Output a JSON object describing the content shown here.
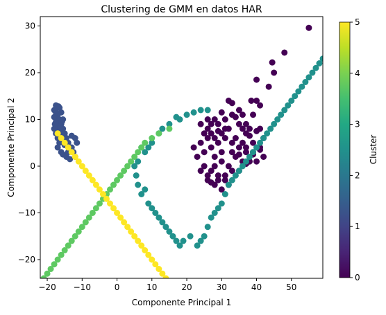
{
  "chart_data": {
    "type": "scatter",
    "title": "Clustering de GMM en datos HAR",
    "xlabel": "Componente Principal 1",
    "ylabel": "Componente Principal 2",
    "xlim": [
      -22,
      59
    ],
    "ylim": [
      -24,
      32
    ],
    "xticks": [
      -20,
      -10,
      0,
      10,
      20,
      30,
      40,
      50
    ],
    "yticks": [
      -20,
      -10,
      0,
      10,
      20,
      30
    ],
    "grid": false,
    "colorbar": {
      "label": "Cluster",
      "range": [
        0,
        5
      ],
      "ticks": [
        0,
        1,
        2,
        3,
        4,
        5
      ],
      "colormap": "viridis",
      "colors": [
        "#440154",
        "#3b528b",
        "#21918c",
        "#5ec962",
        "#fde725"
      ]
    },
    "series": [
      {
        "cluster": 0,
        "color": "#440154",
        "points": [
          [
            55,
            29.6
          ],
          [
            48,
            24.3
          ],
          [
            44.5,
            22.2
          ],
          [
            45,
            20
          ],
          [
            43.5,
            17
          ],
          [
            40,
            18.5
          ],
          [
            40,
            14
          ],
          [
            41,
            13
          ],
          [
            38.5,
            14
          ],
          [
            36,
            11
          ],
          [
            32,
            14
          ],
          [
            33,
            13.5
          ],
          [
            34,
            10.5
          ],
          [
            31,
            10
          ],
          [
            30,
            11.5
          ],
          [
            29,
            9
          ],
          [
            28,
            10
          ],
          [
            27,
            9
          ],
          [
            26,
            10
          ],
          [
            35,
            9
          ],
          [
            36,
            8
          ],
          [
            37,
            7
          ],
          [
            38,
            6.5
          ],
          [
            39,
            5
          ],
          [
            40,
            7.5
          ],
          [
            41,
            4
          ],
          [
            42,
            2
          ],
          [
            39,
            2.5
          ],
          [
            37,
            3
          ],
          [
            35,
            4
          ],
          [
            33,
            5
          ],
          [
            31,
            6
          ],
          [
            30,
            3
          ],
          [
            29,
            5
          ],
          [
            28,
            2
          ],
          [
            27,
            4
          ],
          [
            26,
            6
          ],
          [
            25,
            3
          ],
          [
            24,
            5
          ],
          [
            36,
            1
          ],
          [
            34,
            2
          ],
          [
            32,
            0
          ],
          [
            30,
            1
          ],
          [
            28,
            0
          ],
          [
            27,
            -1
          ],
          [
            26,
            -2
          ],
          [
            25,
            0
          ],
          [
            29,
            -2
          ],
          [
            31,
            -3
          ],
          [
            33,
            -1
          ],
          [
            35,
            -1
          ],
          [
            37,
            0.5
          ],
          [
            38,
            1
          ],
          [
            40,
            1
          ],
          [
            32,
            -4
          ],
          [
            30,
            -5
          ],
          [
            28,
            -4
          ],
          [
            27,
            -3.5
          ],
          [
            29,
            -3
          ],
          [
            31,
            -2
          ],
          [
            26,
            -3
          ],
          [
            24,
            -1
          ],
          [
            23,
            2
          ],
          [
            22,
            4
          ],
          [
            30,
            7
          ],
          [
            32,
            8
          ],
          [
            34,
            6
          ],
          [
            36,
            5
          ],
          [
            38,
            8
          ],
          [
            28,
            6
          ],
          [
            26,
            8
          ],
          [
            25,
            7
          ],
          [
            24,
            9
          ],
          [
            33,
            11
          ],
          [
            35,
            12
          ],
          [
            37,
            9
          ],
          [
            39,
            11
          ],
          [
            41,
            8
          ],
          [
            42,
            6
          ],
          [
            27,
            7
          ],
          [
            29,
            7.5
          ],
          [
            31,
            8
          ],
          [
            33,
            3
          ],
          [
            35,
            2.5
          ],
          [
            37,
            4
          ],
          [
            39,
            3
          ],
          [
            41,
            3.5
          ]
        ]
      },
      {
        "cluster": 1,
        "color": "#3b528b",
        "points": [
          [
            -17.5,
            13
          ],
          [
            -16.5,
            12.5
          ],
          [
            -18,
            12
          ],
          [
            -17,
            11
          ],
          [
            -16,
            11.5
          ],
          [
            -18,
            10.5
          ],
          [
            -16.5,
            10
          ],
          [
            -17.5,
            9.5
          ],
          [
            -15.5,
            10
          ],
          [
            -16,
            9
          ],
          [
            -17,
            8.5
          ],
          [
            -18,
            8
          ],
          [
            -15.5,
            8
          ],
          [
            -16.5,
            7.5
          ],
          [
            -17.5,
            7
          ],
          [
            -15,
            7
          ],
          [
            -16,
            6.5
          ],
          [
            -17,
            6
          ],
          [
            -14.5,
            6
          ],
          [
            -15.5,
            5.5
          ],
          [
            -16.5,
            5
          ],
          [
            -14,
            5
          ],
          [
            -15,
            4.5
          ],
          [
            -17,
            4
          ],
          [
            -13,
            4
          ],
          [
            -14,
            3
          ],
          [
            -12.5,
            3
          ],
          [
            -12,
            6
          ],
          [
            -11.5,
            5
          ],
          [
            -13,
            6.5
          ],
          [
            -14.5,
            2
          ],
          [
            -15.5,
            2.5
          ],
          [
            -16,
            3
          ],
          [
            -13.5,
            1.5
          ],
          [
            -12,
            2
          ],
          [
            -17.5,
            11.5
          ],
          [
            -16.8,
            12.8
          ],
          [
            -15.8,
            9.5
          ],
          [
            -17.8,
            9
          ],
          [
            -16.2,
            8.2
          ]
        ]
      },
      {
        "cluster": 2,
        "color": "#21918c",
        "points": [
          [
            26,
            12
          ],
          [
            24,
            12
          ],
          [
            22,
            11.5
          ],
          [
            20,
            11
          ],
          [
            18,
            10
          ],
          [
            17,
            10.5
          ],
          [
            15,
            9
          ],
          [
            13,
            8
          ],
          [
            12,
            7
          ],
          [
            10,
            5
          ],
          [
            9,
            4
          ],
          [
            8,
            3
          ],
          [
            7,
            4
          ],
          [
            6,
            1
          ],
          [
            5,
            0
          ],
          [
            5.5,
            -2
          ],
          [
            6,
            -4
          ],
          [
            7,
            -6
          ],
          [
            8,
            -5
          ],
          [
            9,
            -8
          ],
          [
            10,
            -9
          ],
          [
            11,
            -10
          ],
          [
            12,
            -11
          ],
          [
            13,
            -12
          ],
          [
            14,
            -13
          ],
          [
            15,
            -14
          ],
          [
            16,
            -15
          ],
          [
            17,
            -16
          ],
          [
            18,
            -17
          ],
          [
            19,
            -16
          ],
          [
            21,
            -15
          ],
          [
            23,
            -17
          ],
          [
            24,
            -16
          ],
          [
            25,
            -15
          ],
          [
            26,
            -13
          ],
          [
            27,
            -11
          ],
          [
            28,
            -10
          ],
          [
            29,
            -9
          ],
          [
            30,
            -8
          ],
          [
            31,
            -6
          ],
          [
            32,
            -4
          ],
          [
            33,
            -3
          ],
          [
            34,
            -2
          ],
          [
            35,
            -1
          ],
          [
            36,
            0
          ],
          [
            37,
            1
          ],
          [
            38,
            2
          ],
          [
            39,
            3
          ],
          [
            40,
            4
          ],
          [
            41,
            5
          ],
          [
            42,
            6
          ],
          [
            43,
            7
          ],
          [
            44,
            8
          ],
          [
            45,
            9
          ],
          [
            46,
            10
          ],
          [
            47,
            11
          ],
          [
            48,
            12
          ],
          [
            49,
            13
          ],
          [
            50,
            14
          ],
          [
            51,
            15
          ],
          [
            52,
            16
          ],
          [
            53,
            17
          ],
          [
            54,
            18
          ],
          [
            55,
            19
          ],
          [
            56,
            20
          ],
          [
            57,
            21
          ],
          [
            58,
            22
          ],
          [
            59,
            23
          ]
        ]
      },
      {
        "cluster": 3,
        "color": "#5ec962",
        "points": [
          [
            15,
            8
          ],
          [
            12,
            7
          ],
          [
            10,
            6
          ],
          [
            8,
            5
          ],
          [
            7,
            4
          ],
          [
            6,
            3
          ],
          [
            5,
            2
          ],
          [
            4,
            1
          ],
          [
            3,
            0
          ],
          [
            2,
            -1
          ],
          [
            1,
            -2
          ],
          [
            0,
            -3
          ],
          [
            -1,
            -4
          ],
          [
            -2,
            -5
          ],
          [
            -3,
            -6
          ],
          [
            -4,
            -7
          ],
          [
            -5,
            -8
          ],
          [
            -6,
            -9
          ],
          [
            -7,
            -10
          ],
          [
            -8,
            -11
          ],
          [
            -9,
            -12
          ],
          [
            -10,
            -13
          ],
          [
            -11,
            -14
          ],
          [
            -12,
            -15
          ],
          [
            -13,
            -16
          ],
          [
            -14,
            -17
          ],
          [
            -15,
            -18
          ],
          [
            -16,
            -19
          ],
          [
            -17,
            -20
          ],
          [
            -18,
            -21
          ],
          [
            -19,
            -22
          ],
          [
            -20,
            -23
          ],
          [
            -21,
            -24
          ]
        ]
      },
      {
        "cluster": 4,
        "color": "#fde725",
        "points": [
          [
            -17,
            7
          ],
          [
            -16,
            6
          ],
          [
            -15,
            5
          ],
          [
            -14,
            4
          ],
          [
            -13,
            3
          ],
          [
            -12,
            2
          ],
          [
            -11,
            1
          ],
          [
            -10,
            0
          ],
          [
            -9,
            -1
          ],
          [
            -8,
            -2
          ],
          [
            -7,
            -3
          ],
          [
            -6,
            -4
          ],
          [
            -5,
            -5
          ],
          [
            -4,
            -6
          ],
          [
            -3,
            -7
          ],
          [
            -2,
            -8
          ],
          [
            -1,
            -9
          ],
          [
            0,
            -10
          ],
          [
            1,
            -11
          ],
          [
            2,
            -12
          ],
          [
            3,
            -13
          ],
          [
            4,
            -14
          ],
          [
            5,
            -15
          ],
          [
            6,
            -16
          ],
          [
            7,
            -17
          ],
          [
            8,
            -18
          ],
          [
            9,
            -19
          ],
          [
            10,
            -20
          ],
          [
            11,
            -21
          ],
          [
            12,
            -22
          ],
          [
            13,
            -23
          ],
          [
            14,
            -24
          ]
        ]
      }
    ]
  }
}
